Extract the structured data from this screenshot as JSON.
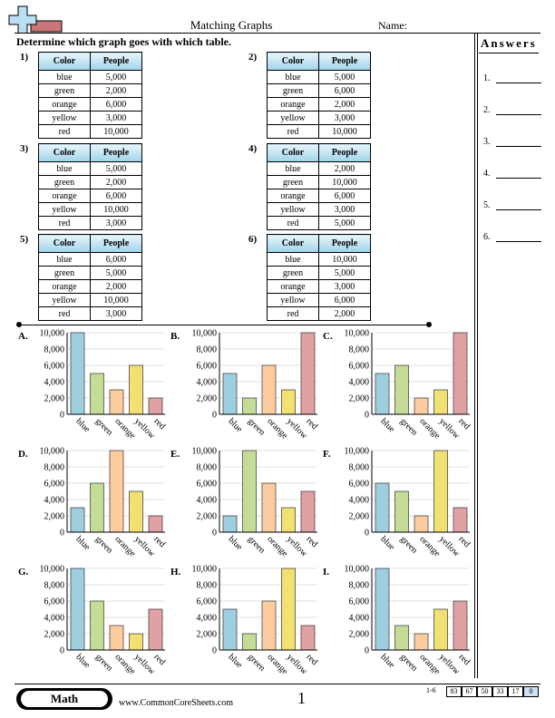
{
  "header": {
    "title": "Matching Graphs",
    "name_label": "Name:"
  },
  "instruction": "Determine which graph goes with which table.",
  "answers": {
    "title": "Answers",
    "items": [
      "1.",
      "2.",
      "3.",
      "4.",
      "5.",
      "6."
    ]
  },
  "table_headers": {
    "color": "Color",
    "people": "People"
  },
  "tables": [
    {
      "label": "1)",
      "rows": [
        [
          "blue",
          "5,000"
        ],
        [
          "green",
          "2,000"
        ],
        [
          "orange",
          "6,000"
        ],
        [
          "yellow",
          "3,000"
        ],
        [
          "red",
          "10,000"
        ]
      ]
    },
    {
      "label": "2)",
      "rows": [
        [
          "blue",
          "5,000"
        ],
        [
          "green",
          "6,000"
        ],
        [
          "orange",
          "2,000"
        ],
        [
          "yellow",
          "3,000"
        ],
        [
          "red",
          "10,000"
        ]
      ]
    },
    {
      "label": "3)",
      "rows": [
        [
          "blue",
          "5,000"
        ],
        [
          "green",
          "2,000"
        ],
        [
          "orange",
          "6,000"
        ],
        [
          "yellow",
          "10,000"
        ],
        [
          "red",
          "3,000"
        ]
      ]
    },
    {
      "label": "4)",
      "rows": [
        [
          "blue",
          "2,000"
        ],
        [
          "green",
          "10,000"
        ],
        [
          "orange",
          "6,000"
        ],
        [
          "yellow",
          "3,000"
        ],
        [
          "red",
          "5,000"
        ]
      ]
    },
    {
      "label": "5)",
      "rows": [
        [
          "blue",
          "6,000"
        ],
        [
          "green",
          "5,000"
        ],
        [
          "orange",
          "2,000"
        ],
        [
          "yellow",
          "10,000"
        ],
        [
          "red",
          "3,000"
        ]
      ]
    },
    {
      "label": "6)",
      "rows": [
        [
          "blue",
          "10,000"
        ],
        [
          "green",
          "5,000"
        ],
        [
          "orange",
          "3,000"
        ],
        [
          "yellow",
          "6,000"
        ],
        [
          "red",
          "2,000"
        ]
      ]
    }
  ],
  "chart_data": [
    {
      "label": "A.",
      "type": "bar",
      "categories": [
        "blue",
        "green",
        "orange",
        "yellow",
        "red"
      ],
      "values": [
        10000,
        5000,
        3000,
        6000,
        2000
      ],
      "ylim": [
        0,
        10000
      ],
      "yticks": [
        "0",
        "2,000",
        "4,000",
        "6,000",
        "8,000",
        "10,000"
      ]
    },
    {
      "label": "B.",
      "type": "bar",
      "categories": [
        "blue",
        "green",
        "orange",
        "yellow",
        "red"
      ],
      "values": [
        5000,
        2000,
        6000,
        3000,
        10000
      ],
      "ylim": [
        0,
        10000
      ],
      "yticks": [
        "0",
        "2,000",
        "4,000",
        "6,000",
        "8,000",
        "10,000"
      ]
    },
    {
      "label": "C.",
      "type": "bar",
      "categories": [
        "blue",
        "green",
        "orange",
        "yellow",
        "red"
      ],
      "values": [
        5000,
        6000,
        2000,
        3000,
        10000
      ],
      "ylim": [
        0,
        10000
      ],
      "yticks": [
        "0",
        "2,000",
        "4,000",
        "6,000",
        "8,000",
        "10,000"
      ]
    },
    {
      "label": "D.",
      "type": "bar",
      "categories": [
        "blue",
        "green",
        "orange",
        "yellow",
        "red"
      ],
      "values": [
        3000,
        6000,
        10000,
        5000,
        2000
      ],
      "ylim": [
        0,
        10000
      ],
      "yticks": [
        "0",
        "2,000",
        "4,000",
        "6,000",
        "8,000",
        "10,000"
      ]
    },
    {
      "label": "E.",
      "type": "bar",
      "categories": [
        "blue",
        "green",
        "orange",
        "yellow",
        "red"
      ],
      "values": [
        2000,
        10000,
        6000,
        3000,
        5000
      ],
      "ylim": [
        0,
        10000
      ],
      "yticks": [
        "0",
        "2,000",
        "4,000",
        "6,000",
        "8,000",
        "10,000"
      ]
    },
    {
      "label": "F.",
      "type": "bar",
      "categories": [
        "blue",
        "green",
        "orange",
        "yellow",
        "red"
      ],
      "values": [
        6000,
        5000,
        2000,
        10000,
        3000
      ],
      "ylim": [
        0,
        10000
      ],
      "yticks": [
        "0",
        "2,000",
        "4,000",
        "6,000",
        "8,000",
        "10,000"
      ]
    },
    {
      "label": "G.",
      "type": "bar",
      "categories": [
        "blue",
        "green",
        "orange",
        "yellow",
        "red"
      ],
      "values": [
        10000,
        6000,
        3000,
        2000,
        5000
      ],
      "ylim": [
        0,
        10000
      ],
      "yticks": [
        "0",
        "2,000",
        "4,000",
        "6,000",
        "8,000",
        "10,000"
      ]
    },
    {
      "label": "H.",
      "type": "bar",
      "categories": [
        "blue",
        "green",
        "orange",
        "yellow",
        "red"
      ],
      "values": [
        5000,
        2000,
        6000,
        10000,
        3000
      ],
      "ylim": [
        0,
        10000
      ],
      "yticks": [
        "0",
        "2,000",
        "4,000",
        "6,000",
        "8,000",
        "10,000"
      ]
    },
    {
      "label": "I.",
      "type": "bar",
      "categories": [
        "blue",
        "green",
        "orange",
        "yellow",
        "red"
      ],
      "values": [
        10000,
        3000,
        2000,
        5000,
        6000
      ],
      "ylim": [
        0,
        10000
      ],
      "yticks": [
        "0",
        "2,000",
        "4,000",
        "6,000",
        "8,000",
        "10,000"
      ]
    }
  ],
  "bar_colors": {
    "blue": "#9ecfe0",
    "green": "#c5dc96",
    "orange": "#fccb9e",
    "yellow": "#f2e073",
    "red": "#e0a1a5"
  },
  "footer": {
    "subject": "Math",
    "site": "www.CommonCoreSheets.com",
    "page": "1",
    "score_range": "1-6",
    "scores": [
      "83",
      "67",
      "50",
      "33",
      "17",
      "0"
    ]
  }
}
